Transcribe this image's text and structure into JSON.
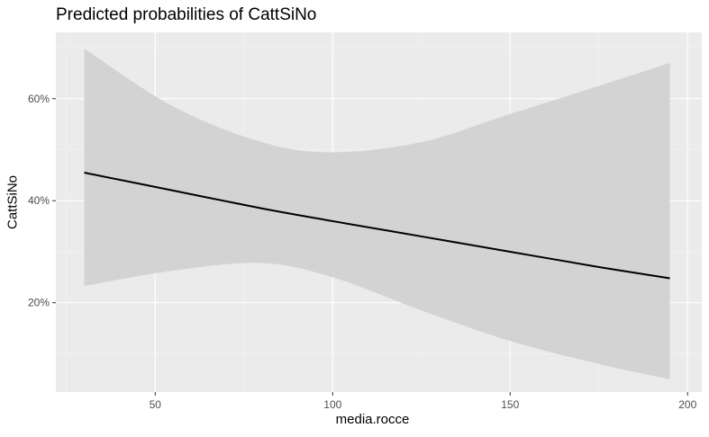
{
  "chart_data": {
    "type": "line",
    "title": "Predicted probabilities of CattSiNo",
    "xlabel": "media.rocce",
    "ylabel": "CattSiNo",
    "xlim": [
      22,
      204
    ],
    "ylim": [
      0.025,
      0.73
    ],
    "x_ticks": [
      50,
      100,
      150,
      200
    ],
    "y_ticks": [
      0.2,
      0.4,
      0.6
    ],
    "y_tick_labels": [
      "20%",
      "40%",
      "60%"
    ],
    "grid": true,
    "series": [
      {
        "x": [
          30,
          55,
          80,
          100,
          125,
          150,
          175,
          195
        ],
        "y": [
          0.455,
          0.42,
          0.385,
          0.36,
          0.33,
          0.3,
          0.27,
          0.248
        ],
        "lower": [
          0.233,
          0.263,
          0.278,
          0.25,
          0.185,
          0.125,
          0.08,
          0.05
        ],
        "upper": [
          0.698,
          0.585,
          0.515,
          0.495,
          0.515,
          0.57,
          0.625,
          0.67
        ]
      }
    ],
    "colors": {
      "panel": "#ebebeb",
      "band": "#d3d3d3",
      "line": "#000000",
      "grid": "#ffffff"
    }
  }
}
